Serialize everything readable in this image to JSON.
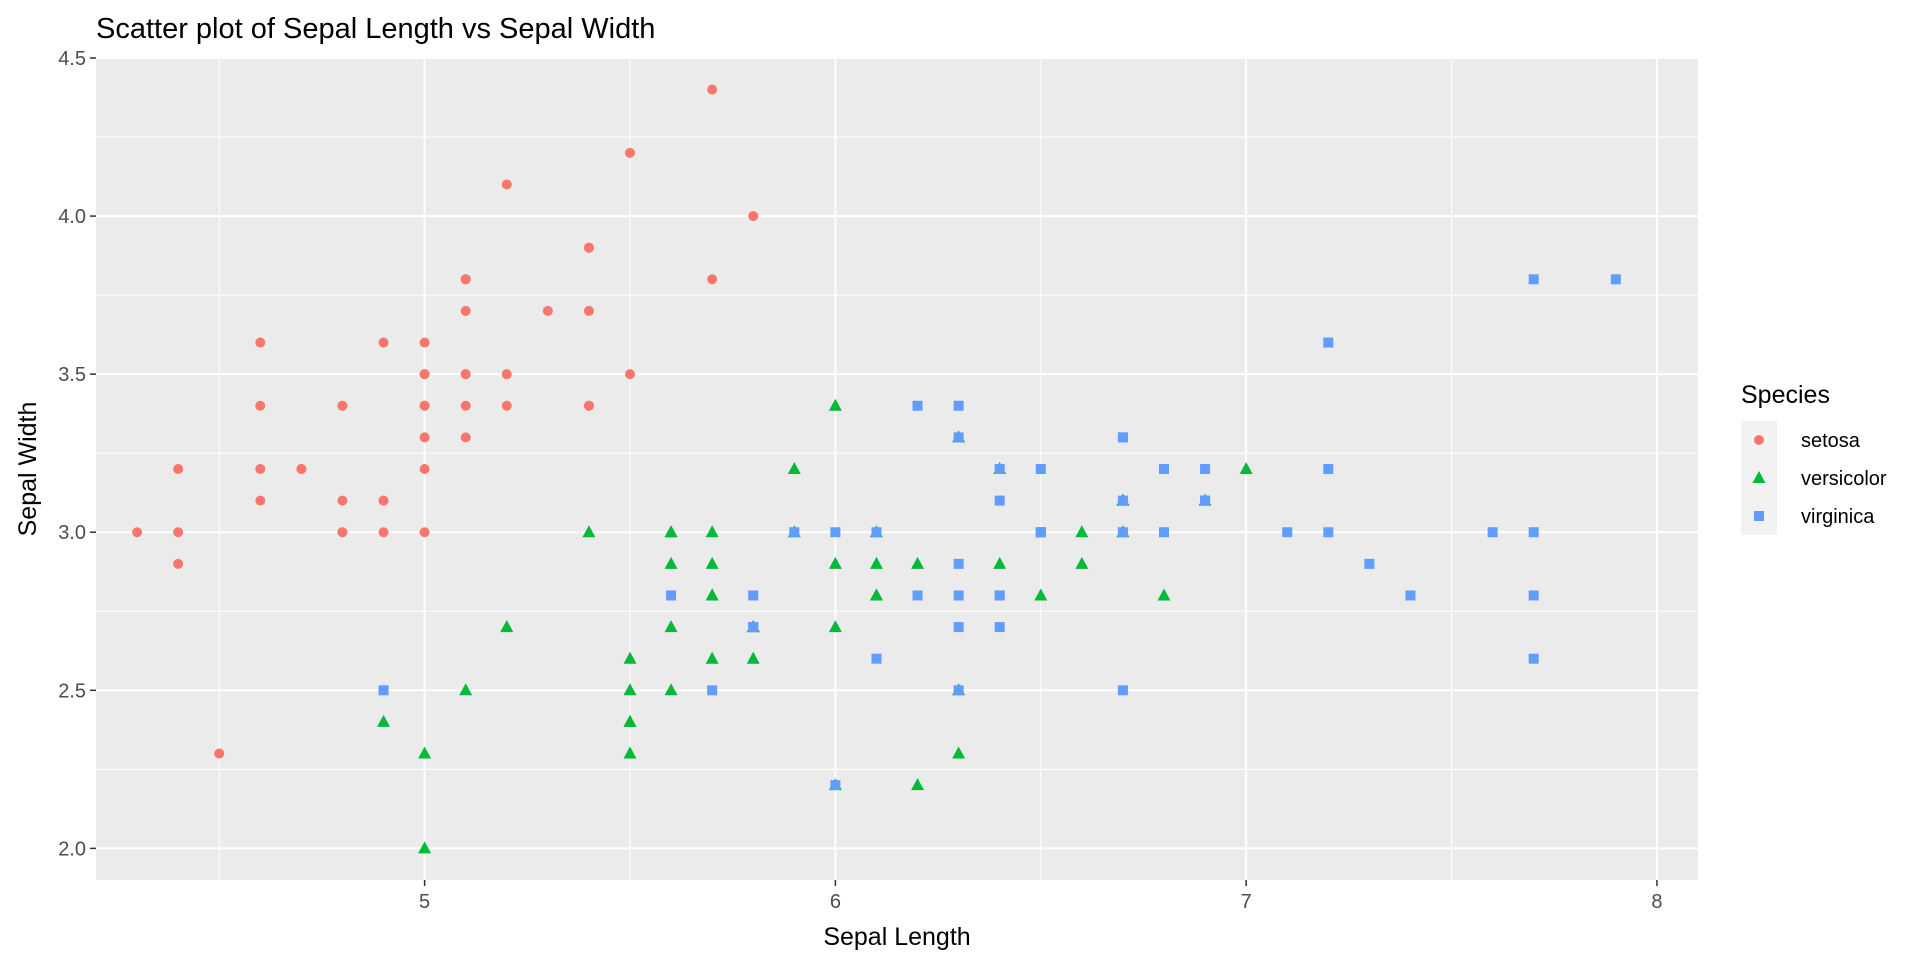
{
  "chart_data": {
    "type": "scatter",
    "title": "Scatter plot of Sepal Length vs Sepal Width",
    "xlabel": "Sepal Length",
    "ylabel": "Sepal Width",
    "xlim": [
      4.2,
      8.1
    ],
    "ylim": [
      1.9,
      4.5
    ],
    "x_ticks": [
      5,
      6,
      7,
      8
    ],
    "x_tick_labels": [
      "5",
      "6",
      "7",
      "8"
    ],
    "y_ticks": [
      2.0,
      2.5,
      3.0,
      3.5,
      4.0,
      4.5
    ],
    "y_tick_labels": [
      "2.0",
      "2.5",
      "3.0",
      "3.5",
      "4.0",
      "4.5"
    ],
    "grid": true,
    "legend": {
      "title": "Species",
      "position": "right"
    },
    "series": [
      {
        "name": "setosa",
        "color": "#F8766D",
        "shape": "circle",
        "points": [
          [
            5.1,
            3.5
          ],
          [
            4.9,
            3.0
          ],
          [
            4.7,
            3.2
          ],
          [
            4.6,
            3.1
          ],
          [
            5.0,
            3.6
          ],
          [
            5.4,
            3.9
          ],
          [
            4.6,
            3.4
          ],
          [
            5.0,
            3.4
          ],
          [
            4.4,
            2.9
          ],
          [
            4.9,
            3.1
          ],
          [
            5.4,
            3.7
          ],
          [
            4.8,
            3.4
          ],
          [
            4.8,
            3.0
          ],
          [
            4.3,
            3.0
          ],
          [
            5.8,
            4.0
          ],
          [
            5.7,
            4.4
          ],
          [
            5.4,
            3.9
          ],
          [
            5.1,
            3.5
          ],
          [
            5.7,
            3.8
          ],
          [
            5.1,
            3.8
          ],
          [
            5.4,
            3.4
          ],
          [
            5.1,
            3.7
          ],
          [
            4.6,
            3.6
          ],
          [
            5.1,
            3.3
          ],
          [
            4.8,
            3.4
          ],
          [
            5.0,
            3.0
          ],
          [
            5.0,
            3.4
          ],
          [
            5.2,
            3.5
          ],
          [
            5.2,
            3.4
          ],
          [
            4.7,
            3.2
          ],
          [
            4.8,
            3.1
          ],
          [
            5.4,
            3.4
          ],
          [
            5.2,
            4.1
          ],
          [
            5.5,
            4.2
          ],
          [
            4.9,
            3.1
          ],
          [
            5.0,
            3.2
          ],
          [
            5.5,
            3.5
          ],
          [
            4.9,
            3.6
          ],
          [
            4.4,
            3.0
          ],
          [
            5.1,
            3.4
          ],
          [
            5.0,
            3.5
          ],
          [
            4.5,
            2.3
          ],
          [
            4.4,
            3.2
          ],
          [
            5.0,
            3.5
          ],
          [
            5.1,
            3.8
          ],
          [
            4.8,
            3.0
          ],
          [
            5.1,
            3.8
          ],
          [
            4.6,
            3.2
          ],
          [
            5.3,
            3.7
          ],
          [
            5.0,
            3.3
          ]
        ]
      },
      {
        "name": "versicolor",
        "color": "#00BA38",
        "shape": "triangle",
        "points": [
          [
            7.0,
            3.2
          ],
          [
            6.4,
            3.2
          ],
          [
            6.9,
            3.1
          ],
          [
            5.5,
            2.3
          ],
          [
            6.5,
            2.8
          ],
          [
            5.7,
            2.8
          ],
          [
            6.3,
            3.3
          ],
          [
            4.9,
            2.4
          ],
          [
            6.6,
            2.9
          ],
          [
            5.2,
            2.7
          ],
          [
            5.0,
            2.0
          ],
          [
            5.9,
            3.0
          ],
          [
            6.0,
            2.2
          ],
          [
            6.1,
            2.9
          ],
          [
            5.6,
            2.9
          ],
          [
            6.7,
            3.1
          ],
          [
            5.6,
            3.0
          ],
          [
            5.8,
            2.7
          ],
          [
            6.2,
            2.2
          ],
          [
            5.6,
            2.5
          ],
          [
            5.9,
            3.2
          ],
          [
            6.1,
            2.8
          ],
          [
            6.3,
            2.5
          ],
          [
            6.1,
            2.8
          ],
          [
            6.4,
            2.9
          ],
          [
            6.6,
            3.0
          ],
          [
            6.8,
            2.8
          ],
          [
            6.7,
            3.0
          ],
          [
            6.0,
            2.9
          ],
          [
            5.7,
            2.6
          ],
          [
            5.5,
            2.4
          ],
          [
            5.5,
            2.4
          ],
          [
            5.8,
            2.7
          ],
          [
            6.0,
            2.7
          ],
          [
            5.4,
            3.0
          ],
          [
            6.0,
            3.4
          ],
          [
            6.7,
            3.1
          ],
          [
            6.3,
            2.3
          ],
          [
            5.6,
            3.0
          ],
          [
            5.5,
            2.5
          ],
          [
            5.5,
            2.6
          ],
          [
            6.1,
            3.0
          ],
          [
            5.8,
            2.6
          ],
          [
            5.0,
            2.3
          ],
          [
            5.6,
            2.7
          ],
          [
            5.7,
            3.0
          ],
          [
            5.7,
            2.9
          ],
          [
            6.2,
            2.9
          ],
          [
            5.1,
            2.5
          ],
          [
            5.7,
            2.8
          ]
        ]
      },
      {
        "name": "virginica",
        "color": "#619CFF",
        "shape": "square",
        "points": [
          [
            6.3,
            3.3
          ],
          [
            5.8,
            2.7
          ],
          [
            7.1,
            3.0
          ],
          [
            6.3,
            2.9
          ],
          [
            6.5,
            3.0
          ],
          [
            7.6,
            3.0
          ],
          [
            4.9,
            2.5
          ],
          [
            7.3,
            2.9
          ],
          [
            6.7,
            2.5
          ],
          [
            7.2,
            3.6
          ],
          [
            6.5,
            3.2
          ],
          [
            6.4,
            2.7
          ],
          [
            6.8,
            3.0
          ],
          [
            5.7,
            2.5
          ],
          [
            5.8,
            2.8
          ],
          [
            6.4,
            3.2
          ],
          [
            6.5,
            3.0
          ],
          [
            7.7,
            3.8
          ],
          [
            7.7,
            2.6
          ],
          [
            6.0,
            2.2
          ],
          [
            6.9,
            3.2
          ],
          [
            5.6,
            2.8
          ],
          [
            7.7,
            2.8
          ],
          [
            6.3,
            2.7
          ],
          [
            6.7,
            3.3
          ],
          [
            7.2,
            3.2
          ],
          [
            6.2,
            2.8
          ],
          [
            6.1,
            3.0
          ],
          [
            6.4,
            2.8
          ],
          [
            7.2,
            3.0
          ],
          [
            7.4,
            2.8
          ],
          [
            7.9,
            3.8
          ],
          [
            6.4,
            2.8
          ],
          [
            6.3,
            2.8
          ],
          [
            6.1,
            2.6
          ],
          [
            7.7,
            3.0
          ],
          [
            6.3,
            3.4
          ],
          [
            6.4,
            3.1
          ],
          [
            6.0,
            3.0
          ],
          [
            6.9,
            3.1
          ],
          [
            6.7,
            3.1
          ],
          [
            6.9,
            3.1
          ],
          [
            5.8,
            2.7
          ],
          [
            6.8,
            3.2
          ],
          [
            6.7,
            3.3
          ],
          [
            6.7,
            3.0
          ],
          [
            6.3,
            2.5
          ],
          [
            6.5,
            3.0
          ],
          [
            6.2,
            3.4
          ],
          [
            5.9,
            3.0
          ]
        ]
      }
    ]
  },
  "colors": {
    "panel_background": "#EBEBEB",
    "grid_major": "#FFFFFF",
    "legend_key_background": "#F2F2F2"
  }
}
